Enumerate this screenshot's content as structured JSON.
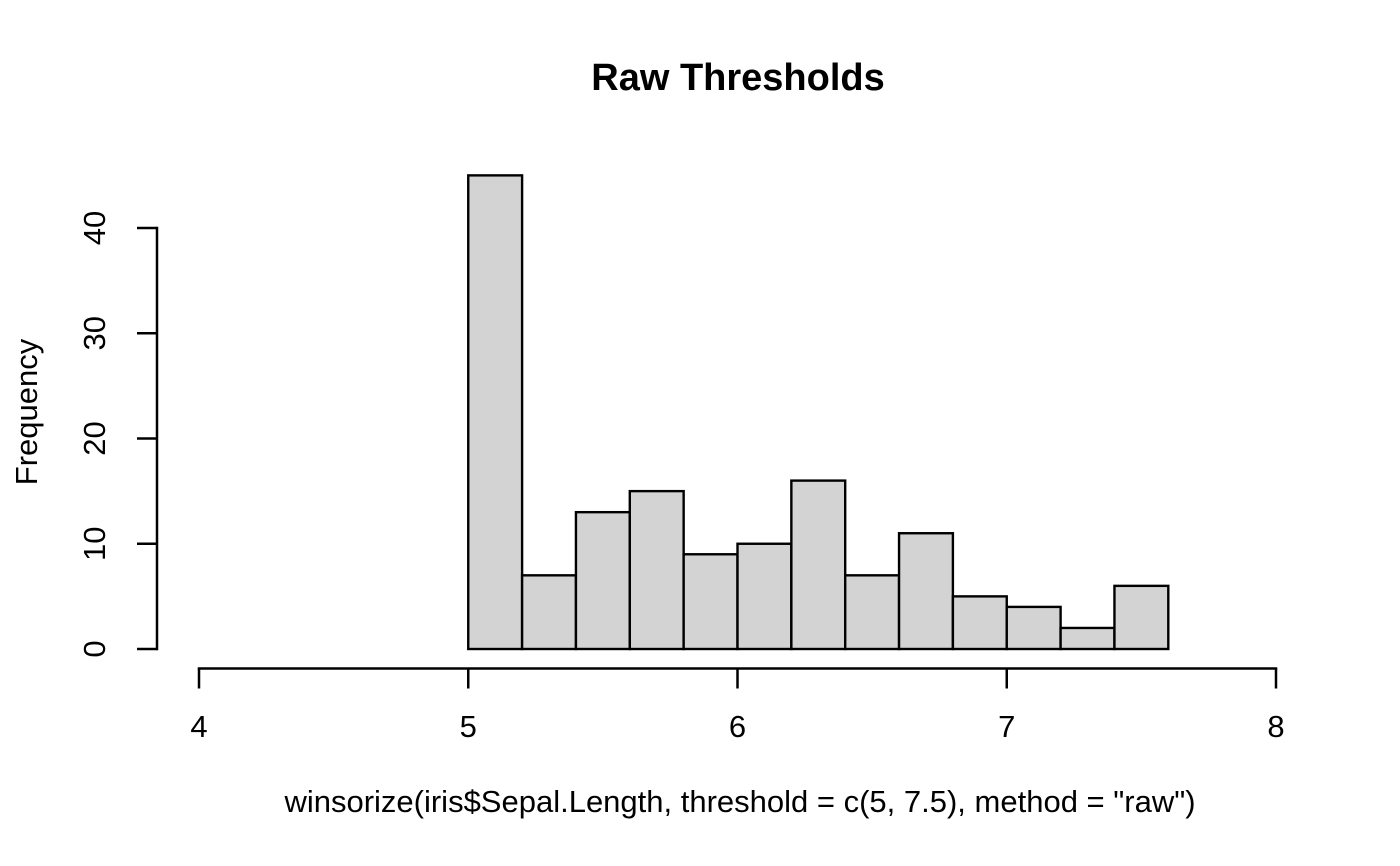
{
  "chart_data": {
    "type": "bar",
    "subtype": "histogram",
    "title": "Raw Thresholds",
    "xlabel": "winsorize(iris$Sepal.Length, threshold = c(5, 7.5), method = \"raw\")",
    "ylabel": "Frequency",
    "bin_breaks": [
      5.0,
      5.2,
      5.4,
      5.6,
      5.8,
      6.0,
      6.2,
      6.4,
      6.6,
      6.8,
      7.0,
      7.2,
      7.4,
      7.6
    ],
    "counts": [
      45,
      7,
      13,
      15,
      9,
      10,
      16,
      7,
      11,
      5,
      4,
      2,
      6
    ],
    "x_ticks": [
      4,
      5,
      6,
      7,
      8
    ],
    "y_ticks": [
      0,
      10,
      20,
      30,
      40
    ],
    "xlim": [
      4,
      8
    ],
    "ylim": [
      0,
      45
    ],
    "grid": false,
    "legend": null,
    "colors": {
      "bar_fill": "#d3d3d3",
      "bar_stroke": "#000000",
      "axis": "#000000",
      "text": "#000000",
      "background": "#ffffff"
    }
  }
}
